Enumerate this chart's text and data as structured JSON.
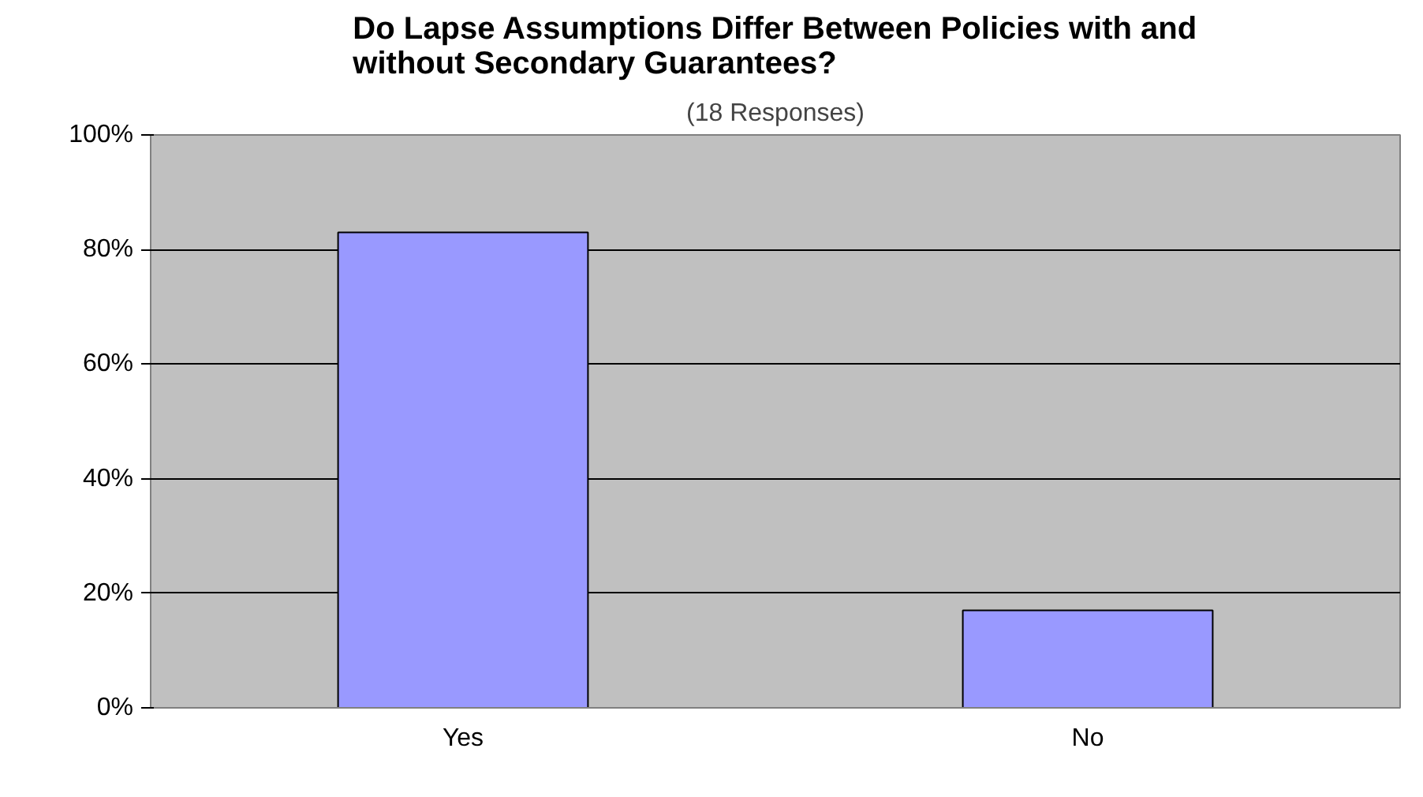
{
  "chart_data": {
    "type": "bar",
    "title": "Do Lapse Assumptions Differ Between Policies with and without Secondary Guarantees?",
    "subtitle": "(18 Responses)",
    "categories": [
      "Yes",
      "No"
    ],
    "values": [
      83,
      17
    ],
    "color": "#9999ff",
    "ylim": [
      0,
      100
    ],
    "yticks": [
      {
        "value": 0,
        "label": "0%"
      },
      {
        "value": 20,
        "label": "20%"
      },
      {
        "value": 40,
        "label": "40%"
      },
      {
        "value": 60,
        "label": "60%"
      },
      {
        "value": 80,
        "label": "80%"
      },
      {
        "value": 100,
        "label": "100%"
      }
    ],
    "grid": "y"
  }
}
